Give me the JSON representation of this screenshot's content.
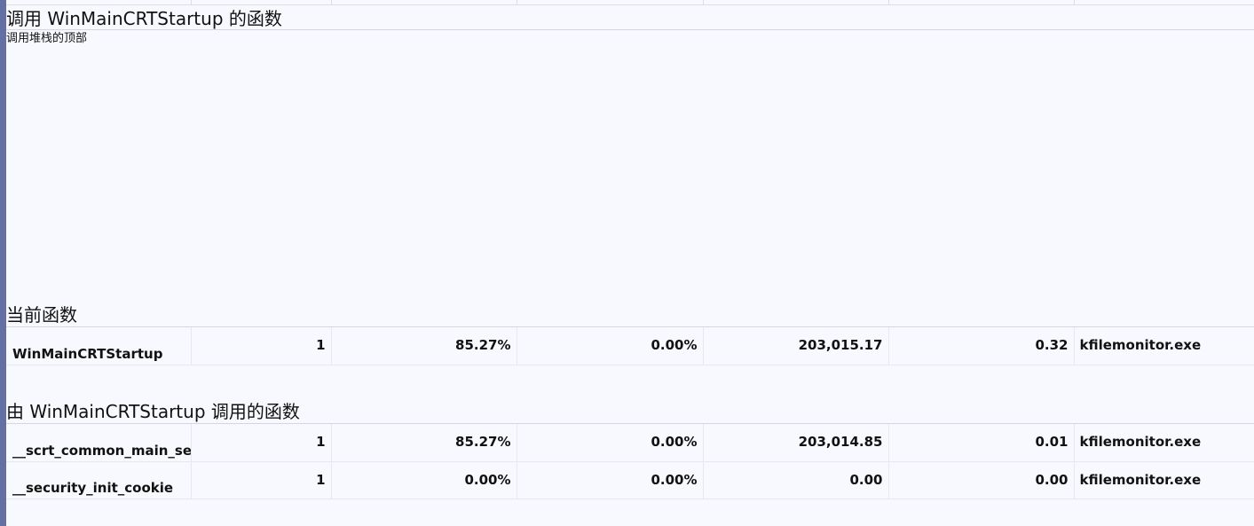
{
  "callers_section": {
    "title": "调用 WinMainCRTStartup 的函数",
    "subtitle": "调用堆栈的顶部"
  },
  "current_section": {
    "title": "当前函数",
    "rows": [
      {
        "name": "WinMainCRTStartup",
        "calls": "1",
        "inclusive_pct": "85.27%",
        "exclusive_pct": "0.00%",
        "inclusive_time": "203,015.17",
        "exclusive_time": "0.32",
        "module": "kfilemonitor.exe"
      }
    ]
  },
  "callees_section": {
    "title": "由 WinMainCRTStartup 调用的函数",
    "rows": [
      {
        "name": "__scrt_common_main_seh",
        "calls": "1",
        "inclusive_pct": "85.27%",
        "exclusive_pct": "0.00%",
        "inclusive_time": "203,014.85",
        "exclusive_time": "0.01",
        "module": "kfilemonitor.exe"
      },
      {
        "name": "__security_init_cookie",
        "calls": "1",
        "inclusive_pct": "0.00%",
        "exclusive_pct": "0.00%",
        "inclusive_time": "0.00",
        "exclusive_time": "0.00",
        "module": "kfilemonitor.exe"
      }
    ]
  },
  "colors": {
    "background": "#f8f9fe",
    "left_stripe": "#6470a4",
    "grid_line": "#e6e7ef"
  }
}
